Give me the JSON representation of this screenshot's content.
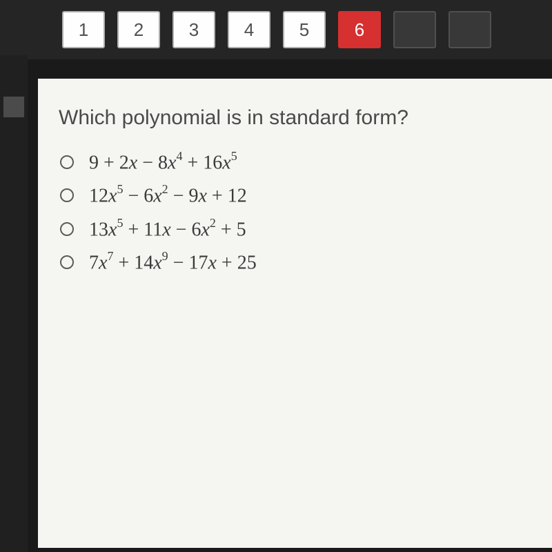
{
  "nav": {
    "items": [
      {
        "label": "1",
        "state": "normal"
      },
      {
        "label": "2",
        "state": "normal"
      },
      {
        "label": "3",
        "state": "normal"
      },
      {
        "label": "4",
        "state": "normal"
      },
      {
        "label": "5",
        "state": "normal"
      },
      {
        "label": "6",
        "state": "current"
      },
      {
        "label": "",
        "state": "disabled"
      },
      {
        "label": "",
        "state": "disabled"
      }
    ]
  },
  "question": {
    "prompt": "Which polynomial is in standard form?",
    "options": [
      {
        "terms": [
          {
            "coef": "9",
            "var": "",
            "exp": ""
          },
          {
            "op": "+",
            "coef": "2",
            "var": "x",
            "exp": ""
          },
          {
            "op": "−",
            "coef": "8",
            "var": "x",
            "exp": "4"
          },
          {
            "op": "+",
            "coef": "16",
            "var": "x",
            "exp": "5"
          }
        ]
      },
      {
        "terms": [
          {
            "coef": "12",
            "var": "x",
            "exp": "5"
          },
          {
            "op": "−",
            "coef": "6",
            "var": "x",
            "exp": "2"
          },
          {
            "op": "−",
            "coef": "9",
            "var": "x",
            "exp": ""
          },
          {
            "op": "+",
            "coef": "12",
            "var": "",
            "exp": ""
          }
        ]
      },
      {
        "terms": [
          {
            "coef": "13",
            "var": "x",
            "exp": "5"
          },
          {
            "op": "+",
            "coef": "11",
            "var": "x",
            "exp": ""
          },
          {
            "op": "−",
            "coef": "6",
            "var": "x",
            "exp": "2"
          },
          {
            "op": "+",
            "coef": "5",
            "var": "",
            "exp": ""
          }
        ]
      },
      {
        "terms": [
          {
            "coef": "7",
            "var": "x",
            "exp": "7"
          },
          {
            "op": "+",
            "coef": "14",
            "var": "x",
            "exp": "9"
          },
          {
            "op": "−",
            "coef": "17",
            "var": "x",
            "exp": ""
          },
          {
            "op": "+",
            "coef": "25",
            "var": "",
            "exp": ""
          }
        ]
      }
    ]
  },
  "colors": {
    "background": "#1a1a1a",
    "nav_bg": "#252525",
    "nav_item_bg": "#fefefe",
    "nav_item_border": "#b0b0b0",
    "nav_item_text": "#505050",
    "nav_current_bg": "#d63030",
    "nav_current_text": "#ffffff",
    "nav_disabled_bg": "#383838",
    "content_bg": "#f5f5f2",
    "question_text": "#4a4a4a",
    "formula_text": "#3a3a3a",
    "radio_border": "#5a5a5a"
  }
}
